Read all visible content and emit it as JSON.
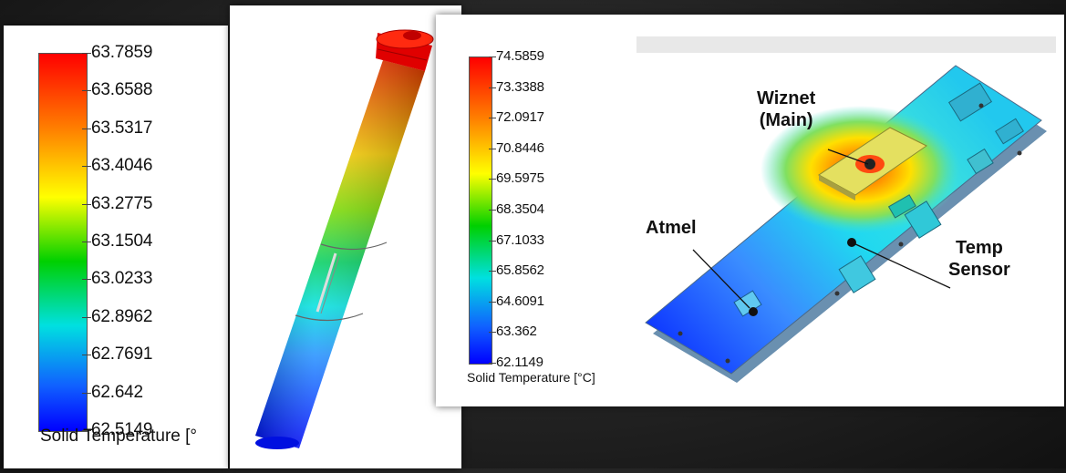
{
  "left_legend": {
    "ticks": [
      "63.7859",
      "63.6588",
      "63.5317",
      "63.4046",
      "63.2775",
      "63.1504",
      "63.0233",
      "62.8962",
      "62.7691",
      "62.642",
      "62.5149"
    ],
    "title": "Solid Temperature [°"
  },
  "right_legend": {
    "ticks": [
      "74.5859",
      "73.3388",
      "72.0917",
      "70.8446",
      "69.5975",
      "68.3504",
      "67.1033",
      "65.8562",
      "64.6091",
      "63.362",
      "62.1149"
    ],
    "title": "Solid Temperature [°C]"
  },
  "board_labels": {
    "wiznet_line1": "Wiznet",
    "wiznet_line2": "(Main)",
    "atmel": "Atmel",
    "temp_line1": "Temp",
    "temp_line2": "Sensor"
  }
}
